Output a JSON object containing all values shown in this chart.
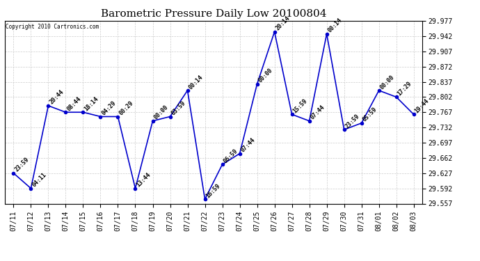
{
  "title": "Barometric Pressure Daily Low 20100804",
  "copyright": "Copyright 2010 Cartronics.com",
  "x_labels": [
    "07/11",
    "07/12",
    "07/13",
    "07/14",
    "07/15",
    "07/16",
    "07/17",
    "07/18",
    "07/19",
    "07/20",
    "07/21",
    "07/22",
    "07/23",
    "07/24",
    "07/25",
    "07/26",
    "07/27",
    "07/28",
    "07/29",
    "07/30",
    "07/31",
    "08/01",
    "08/02",
    "08/03"
  ],
  "y_values": [
    29.627,
    29.592,
    29.782,
    29.767,
    29.767,
    29.757,
    29.757,
    29.592,
    29.747,
    29.757,
    29.817,
    29.567,
    29.647,
    29.672,
    29.832,
    29.952,
    29.762,
    29.747,
    29.947,
    29.727,
    29.742,
    29.817,
    29.802,
    29.762
  ],
  "point_labels": [
    "23:59",
    "04:11",
    "20:44",
    "08:44",
    "18:14",
    "04:29",
    "00:29",
    "13:44",
    "00:00",
    "03:59",
    "00:14",
    "16:59",
    "06:59",
    "07:44",
    "00:00",
    "20:14",
    "15:59",
    "07:44",
    "00:14",
    "23:59",
    "05:59",
    "00:00",
    "17:29",
    "19:44"
  ],
  "ylim_min": 29.557,
  "ylim_max": 29.977,
  "yticks": [
    29.557,
    29.592,
    29.627,
    29.662,
    29.697,
    29.732,
    29.767,
    29.802,
    29.837,
    29.872,
    29.907,
    29.942,
    29.977
  ],
  "line_color": "#0000cc",
  "marker_color": "#0000cc",
  "bg_color": "#ffffff",
  "plot_bg_color": "#ffffff",
  "grid_color": "#cccccc",
  "title_fontsize": 11,
  "tick_fontsize": 7,
  "point_label_fontsize": 6
}
